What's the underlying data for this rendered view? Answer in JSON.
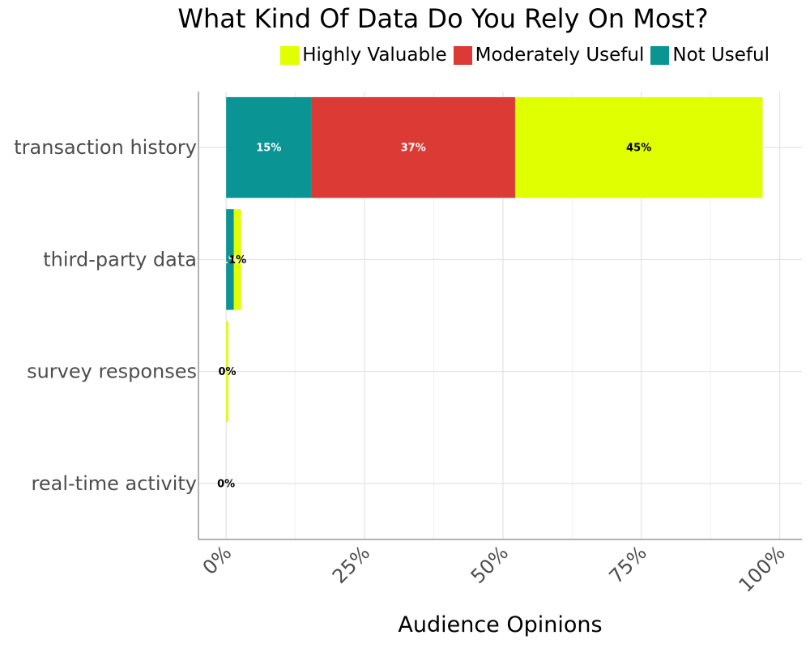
{
  "chart_data": {
    "type": "bar",
    "orientation": "horizontal",
    "stacked": true,
    "title": "What Kind Of Data Do You Rely On Most?",
    "xlabel": "Audience Opinions",
    "ylabel": "",
    "categories": [
      "transaction history",
      "third-party data",
      "survey responses",
      "real-time activity"
    ],
    "series": [
      {
        "name": "Not Useful",
        "color": "#0a9494",
        "values": [
          15.4,
          1.4,
          0,
          0
        ]
      },
      {
        "name": "Moderately Useful",
        "color": "#dc3a34",
        "values": [
          36.8,
          0,
          0,
          0
        ]
      },
      {
        "name": "Highly Valuable",
        "color": "#e0ff00",
        "values": [
          44.7,
          1.3,
          0.4,
          0
        ]
      }
    ],
    "data_labels": [
      {
        "category": "transaction history",
        "series": "Not Useful",
        "text": "15%",
        "color": "#ffffff"
      },
      {
        "category": "transaction history",
        "series": "Moderately Useful",
        "text": "37%",
        "color": "#ffffff"
      },
      {
        "category": "transaction history",
        "series": "Highly Valuable",
        "text": "45%",
        "color": "#000000"
      },
      {
        "category": "third-party data",
        "series": "Not Useful",
        "text": "1%",
        "color": "#ffffff"
      },
      {
        "category": "third-party data",
        "series": "Highly Valuable",
        "text": "1%",
        "color": "#000000"
      },
      {
        "category": "survey responses",
        "series": "Highly Valuable",
        "text": "0%",
        "color": "#000000"
      },
      {
        "category": "real-time activity",
        "series": "Highly Valuable",
        "text": "0%",
        "color": "#000000"
      }
    ],
    "xlim": [
      -5,
      104
    ],
    "xticks": [
      0,
      25,
      50,
      75,
      100
    ],
    "xtick_labels": [
      "0%",
      "25%",
      "50%",
      "75%",
      "100%"
    ],
    "legend": {
      "position": "top-right",
      "items": [
        {
          "label": "Highly Valuable",
          "color": "#e0ff00"
        },
        {
          "label": "Moderately Useful",
          "color": "#dc3a34"
        },
        {
          "label": "Not Useful",
          "color": "#0a9494"
        }
      ]
    },
    "grid": true
  }
}
